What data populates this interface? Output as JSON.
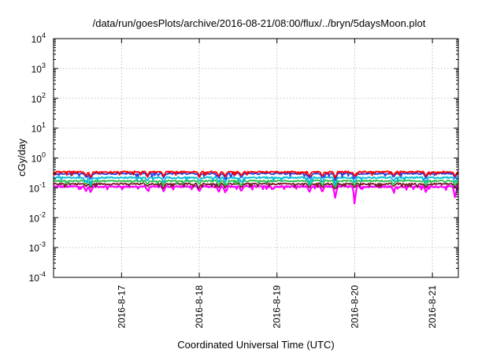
{
  "chart_data": {
    "type": "line",
    "title": "/data/run/goesPlots/archive/2016-08-21/08:00/flux/../bryn/5daysMoon.plot",
    "xlabel": "Coordinated Universal Time (UTC)",
    "ylabel": "cGy/day",
    "yscale": "log",
    "ylim": [
      0.0001,
      10000
    ],
    "yticks": [
      {
        "base": "10",
        "exp": "-4",
        "value": 0.0001
      },
      {
        "base": "10",
        "exp": "-3",
        "value": 0.001
      },
      {
        "base": "10",
        "exp": "-2",
        "value": 0.01
      },
      {
        "base": "10",
        "exp": "-1",
        "value": 0.1
      },
      {
        "base": "10",
        "exp": "0",
        "value": 1
      },
      {
        "base": "10",
        "exp": "1",
        "value": 10
      },
      {
        "base": "10",
        "exp": "2",
        "value": 100
      },
      {
        "base": "10",
        "exp": "3",
        "value": 1000
      },
      {
        "base": "10",
        "exp": "4",
        "value": 10000
      }
    ],
    "xlim": [
      "2016-08-16 03:00",
      "2016-08-21 08:00"
    ],
    "xticks": [
      {
        "label": "2016-8-17",
        "date": "2016-08-17 00:00"
      },
      {
        "label": "2016-8-18",
        "date": "2016-08-18 00:00"
      },
      {
        "label": "2016-8-19",
        "date": "2016-08-19 00:00"
      },
      {
        "label": "2016-8-20",
        "date": "2016-08-20 00:00"
      },
      {
        "label": "2016-8-21",
        "date": "2016-08-21 00:00"
      }
    ],
    "grid": true,
    "series": [
      {
        "color": "#ff0000",
        "base": 0.34,
        "dips": [
          [
            "2016-08-16 13:00",
            0.25
          ],
          [
            "2016-08-16 14:30",
            0.22
          ],
          [
            "2016-08-17 08:00",
            0.27
          ],
          [
            "2016-08-17 13:00",
            0.24
          ],
          [
            "2016-08-18 00:00",
            0.26
          ],
          [
            "2016-08-18 06:00",
            0.24
          ],
          [
            "2016-08-18 08:00",
            0.24
          ],
          [
            "2016-08-18 13:00",
            0.25
          ],
          [
            "2016-08-19 10:00",
            0.24
          ],
          [
            "2016-08-19 14:00",
            0.24
          ],
          [
            "2016-08-19 18:00",
            0.21
          ],
          [
            "2016-08-20 00:00",
            0.24
          ],
          [
            "2016-08-20 12:00",
            0.26
          ],
          [
            "2016-08-20 22:00",
            0.24
          ],
          [
            "2016-08-21 07:00",
            0.24
          ]
        ]
      },
      {
        "color": "#2d3fe0",
        "base": 0.3,
        "dips": [
          [
            "2016-08-16 13:00",
            0.22
          ],
          [
            "2016-08-16 14:30",
            0.19
          ],
          [
            "2016-08-17 08:00",
            0.23
          ],
          [
            "2016-08-17 13:00",
            0.21
          ],
          [
            "2016-08-18 00:00",
            0.22
          ],
          [
            "2016-08-18 06:00",
            0.2
          ],
          [
            "2016-08-18 08:00",
            0.2
          ],
          [
            "2016-08-18 13:00",
            0.21
          ],
          [
            "2016-08-19 10:00",
            0.2
          ],
          [
            "2016-08-19 14:00",
            0.2
          ],
          [
            "2016-08-19 18:00",
            0.17
          ],
          [
            "2016-08-20 00:00",
            0.2
          ],
          [
            "2016-08-20 12:00",
            0.22
          ],
          [
            "2016-08-20 22:00",
            0.2
          ],
          [
            "2016-08-21 07:00",
            0.2
          ]
        ]
      },
      {
        "color": "#00bcd8",
        "base": 0.22,
        "dips": [
          [
            "2016-08-16 13:00",
            0.16
          ],
          [
            "2016-08-16 14:30",
            0.14
          ],
          [
            "2016-08-17 08:00",
            0.17
          ],
          [
            "2016-08-17 13:00",
            0.15
          ],
          [
            "2016-08-18 00:00",
            0.16
          ],
          [
            "2016-08-18 06:00",
            0.15
          ],
          [
            "2016-08-18 08:00",
            0.15
          ],
          [
            "2016-08-18 13:00",
            0.15
          ],
          [
            "2016-08-19 10:00",
            0.15
          ],
          [
            "2016-08-19 14:00",
            0.15
          ],
          [
            "2016-08-19 18:00",
            0.12
          ],
          [
            "2016-08-20 00:00",
            0.15
          ],
          [
            "2016-08-20 12:00",
            0.16
          ],
          [
            "2016-08-20 22:00",
            0.15
          ],
          [
            "2016-08-21 07:00",
            0.15
          ]
        ]
      },
      {
        "color": "#2fbf4f",
        "base": 0.17,
        "dips": [
          [
            "2016-08-16 13:00",
            0.13
          ],
          [
            "2016-08-16 14:30",
            0.11
          ],
          [
            "2016-08-17 08:00",
            0.13
          ],
          [
            "2016-08-17 13:00",
            0.12
          ],
          [
            "2016-08-18 00:00",
            0.13
          ],
          [
            "2016-08-18 06:00",
            0.12
          ],
          [
            "2016-08-18 08:00",
            0.12
          ],
          [
            "2016-08-18 13:00",
            0.12
          ],
          [
            "2016-08-19 10:00",
            0.12
          ],
          [
            "2016-08-19 14:00",
            0.12
          ],
          [
            "2016-08-19 18:00",
            0.1
          ],
          [
            "2016-08-20 00:00",
            0.12
          ],
          [
            "2016-08-20 12:00",
            0.13
          ],
          [
            "2016-08-20 22:00",
            0.12
          ],
          [
            "2016-08-21 07:00",
            0.12
          ]
        ]
      },
      {
        "color": "#7a1a2a",
        "base": 0.135,
        "dips": [
          [
            "2016-08-16 13:00",
            0.11
          ],
          [
            "2016-08-16 14:30",
            0.1
          ],
          [
            "2016-08-17 08:00",
            0.11
          ],
          [
            "2016-08-17 13:00",
            0.1
          ],
          [
            "2016-08-18 00:00",
            0.11
          ],
          [
            "2016-08-18 06:00",
            0.1
          ],
          [
            "2016-08-18 08:00",
            0.1
          ],
          [
            "2016-08-18 13:00",
            0.1
          ],
          [
            "2016-08-19 10:00",
            0.1
          ],
          [
            "2016-08-19 14:00",
            0.1
          ],
          [
            "2016-08-19 18:00",
            0.09
          ],
          [
            "2016-08-20 00:00",
            0.1
          ],
          [
            "2016-08-20 12:00",
            0.11
          ],
          [
            "2016-08-20 22:00",
            0.1
          ],
          [
            "2016-08-21 07:00",
            0.1
          ]
        ]
      },
      {
        "color": "#ff00ff",
        "base": 0.11,
        "dips": [
          [
            "2016-08-16 13:00",
            0.075
          ],
          [
            "2016-08-16 14:30",
            0.068
          ],
          [
            "2016-08-17 08:00",
            0.08
          ],
          [
            "2016-08-17 13:00",
            0.075
          ],
          [
            "2016-08-18 00:00",
            0.073
          ],
          [
            "2016-08-18 06:00",
            0.07
          ],
          [
            "2016-08-18 08:00",
            0.07
          ],
          [
            "2016-08-18 13:00",
            0.075
          ],
          [
            "2016-08-19 10:00",
            0.07
          ],
          [
            "2016-08-19 14:00",
            0.07
          ],
          [
            "2016-08-19 18:00",
            0.042
          ],
          [
            "2016-08-20 00:00",
            0.029
          ],
          [
            "2016-08-20 12:00",
            0.075
          ],
          [
            "2016-08-20 22:00",
            0.07
          ],
          [
            "2016-08-21 07:00",
            0.04
          ]
        ]
      }
    ]
  }
}
